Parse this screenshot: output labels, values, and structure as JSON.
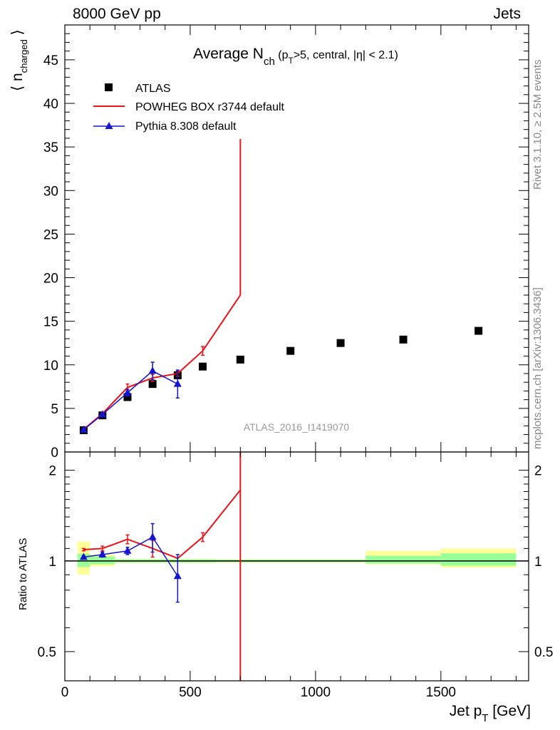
{
  "header": {
    "left": "8000 GeV pp",
    "right": "Jets"
  },
  "side_labels": {
    "top": "Rivet 3.1.10, ≥ 2.5M events",
    "bottom": "mcplots.cern.ch [arXiv:1306.3436]"
  },
  "watermark": "ATLAS_2016_I1419070",
  "colors": {
    "atlas": "#000000",
    "powheg": "#e8141a",
    "pythia": "#1515d0",
    "band_inner": "#99ff99",
    "band_outer": "#ffff99"
  },
  "chart_data": [
    {
      "type": "scatter",
      "title": {
        "main": "Average N",
        "sub": "ch",
        "rest": " (p",
        "sub2": "T",
        "rest2": ">5, central, |η| < 2.1)"
      },
      "ylabel": {
        "main": "⟨ n",
        "sub": "charged",
        "tail": " ⟩"
      },
      "xlim": [
        0,
        1850
      ],
      "ylim": [
        0,
        49
      ],
      "yticks": [
        0,
        5,
        10,
        15,
        20,
        25,
        30,
        35,
        40,
        45
      ],
      "legend": {
        "placement": "top-left"
      },
      "series": [
        {
          "name": "ATLAS",
          "x": [
            75,
            150,
            250,
            350,
            450,
            550,
            700,
            900,
            1100,
            1350,
            1650
          ],
          "values": [
            2.5,
            4.2,
            6.3,
            7.8,
            8.8,
            9.8,
            10.6,
            11.6,
            12.5,
            12.9,
            13.9
          ],
          "xerr": [
            [
              50,
              100
            ],
            [
              100,
              200
            ],
            [
              200,
              300
            ],
            [
              300,
              400
            ],
            [
              400,
              500
            ],
            [
              500,
              600
            ],
            [
              600,
              800
            ],
            [
              800,
              1000
            ],
            [
              1000,
              1200
            ],
            [
              1200,
              1500
            ],
            [
              1500,
              1800
            ]
          ]
        },
        {
          "name": "POWHEG BOX r3744 default",
          "x": [
            75,
            150,
            250,
            350,
            450,
            550,
            700
          ],
          "values": [
            2.6,
            4.4,
            7.4,
            8.5,
            9.0,
            11.6,
            18.0
          ],
          "errors": [
            0.1,
            0.2,
            0.4,
            0.4,
            0.3,
            0.5,
            0
          ]
        },
        {
          "name": "Pythia 8.308 default",
          "x": [
            75,
            150,
            250,
            350,
            450
          ],
          "values": [
            2.55,
            4.3,
            6.8,
            9.3,
            7.8
          ],
          "errors": [
            0.1,
            0.2,
            0.4,
            1.0,
            1.6
          ]
        }
      ]
    },
    {
      "type": "line",
      "ylabel": "Ratio to ATLAS",
      "xlabel": {
        "main": "Jet p",
        "sub": "T",
        "rest": " [GeV]"
      },
      "xlim": [
        0,
        1850
      ],
      "ylim": [
        0.4,
        2.3
      ],
      "log_y": true,
      "yticks": [
        0.5,
        1,
        2
      ],
      "xticks": [
        0,
        500,
        1000,
        1500
      ],
      "bands": {
        "bins": [
          [
            50,
            100
          ],
          [
            100,
            200
          ],
          [
            200,
            300
          ],
          [
            300,
            400
          ],
          [
            400,
            500
          ],
          [
            500,
            600
          ],
          [
            600,
            800
          ],
          [
            800,
            1000
          ],
          [
            1000,
            1200
          ],
          [
            1200,
            1500
          ],
          [
            1500,
            1800
          ]
        ],
        "inner": [
          [
            0.955,
            1.055
          ],
          [
            0.975,
            1.035
          ],
          [
            0.988,
            1.012
          ],
          [
            0.988,
            1.012
          ],
          [
            0.988,
            1.012
          ],
          [
            0.988,
            1.012
          ],
          [
            0.99,
            1.01
          ],
          [
            0.99,
            1.01
          ],
          [
            0.99,
            1.01
          ],
          [
            0.98,
            1.04
          ],
          [
            0.965,
            1.06
          ]
        ],
        "outer": [
          [
            0.9,
            1.16
          ],
          [
            0.96,
            1.05
          ],
          [
            0.985,
            1.015
          ],
          [
            0.985,
            1.015
          ],
          [
            0.985,
            1.015
          ],
          [
            0.985,
            1.015
          ],
          [
            0.988,
            1.012
          ],
          [
            0.988,
            1.012
          ],
          [
            0.988,
            1.012
          ],
          [
            0.975,
            1.08
          ],
          [
            0.95,
            1.1
          ]
        ]
      },
      "series": [
        {
          "name": "POWHEG BOX r3744 default",
          "x": [
            75,
            150,
            250,
            350,
            450,
            550,
            700
          ],
          "values": [
            1.09,
            1.1,
            1.18,
            1.1,
            1.02,
            1.2,
            1.72
          ],
          "errors": [
            0.01,
            0.02,
            0.04,
            0.07,
            0,
            0.04,
            0
          ]
        },
        {
          "name": "Pythia 8.308 default",
          "x": [
            75,
            150,
            250,
            350,
            450
          ],
          "values": [
            1.03,
            1.05,
            1.08,
            1.2,
            0.89
          ],
          "errors": [
            0.01,
            0.02,
            0.03,
            0.13,
            0.16
          ]
        }
      ]
    }
  ]
}
